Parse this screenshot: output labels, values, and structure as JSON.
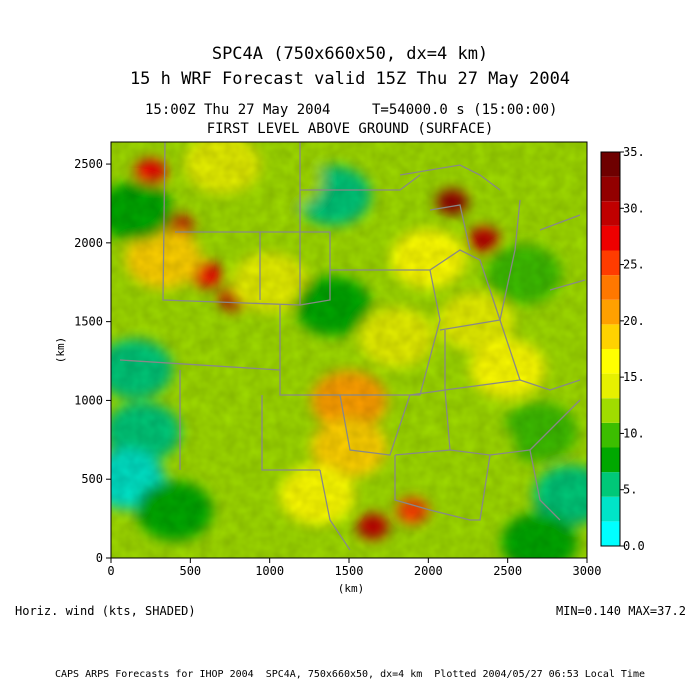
{
  "header": {
    "title_line1": "SPC4A (750x660x50, dx=4 km)",
    "title_line2": "15 h WRF Forecast valid 15Z Thu 27 May 2004",
    "time_left": "15:00Z Thu 27 May 2004",
    "time_right": "T=54000.0 s (15:00:00)",
    "level": "FIRST LEVEL ABOVE GROUND (SURFACE)"
  },
  "chart_data": {
    "type": "heatmap",
    "variable": "Horiz. wind (kts, SHADED)",
    "xlabel": "(km)",
    "ylabel": "(km)",
    "xlim": [
      0,
      3000
    ],
    "ylim": [
      0,
      2640
    ],
    "x_ticks": [
      "0",
      "500",
      "1000",
      "1500",
      "2000",
      "2500",
      "3000"
    ],
    "y_ticks": [
      "0",
      "500",
      "1000",
      "1500",
      "2000",
      "2500"
    ],
    "min_label": "MIN=0.140",
    "max_label": "MAX=37.2",
    "colorbar": {
      "range": [
        0,
        35
      ],
      "labels": [
        "35.",
        "30.",
        "25.",
        "20.",
        "15.",
        "10.",
        "5.",
        "0.0"
      ],
      "colors": [
        "#00ffff",
        "#00e4c8",
        "#00c878",
        "#00a800",
        "#3cbe00",
        "#a0dc00",
        "#e6f000",
        "#ffff00",
        "#ffd200",
        "#ffa000",
        "#ff7800",
        "#ff3c00",
        "#ee0000",
        "#c00000",
        "#920000",
        "#6e0000"
      ]
    },
    "regions": [
      {
        "x": 250,
        "y": 2450,
        "value": 27
      },
      {
        "x": 420,
        "y": 2100,
        "value": 30
      },
      {
        "x": 600,
        "y": 1800,
        "value": 28
      },
      {
        "x": 780,
        "y": 1650,
        "value": 29
      },
      {
        "x": 330,
        "y": 1900,
        "value": 18
      },
      {
        "x": 150,
        "y": 2200,
        "value": 8
      },
      {
        "x": 150,
        "y": 1200,
        "value": 6
      },
      {
        "x": 200,
        "y": 800,
        "value": 5
      },
      {
        "x": 100,
        "y": 500,
        "value": 4
      },
      {
        "x": 400,
        "y": 300,
        "value": 7
      },
      {
        "x": 900,
        "y": 1100,
        "value": 12
      },
      {
        "x": 1000,
        "y": 1750,
        "value": 14
      },
      {
        "x": 1400,
        "y": 2300,
        "value": 6
      },
      {
        "x": 1400,
        "y": 1600,
        "value": 8
      },
      {
        "x": 1500,
        "y": 1000,
        "value": 20
      },
      {
        "x": 1500,
        "y": 700,
        "value": 19
      },
      {
        "x": 1300,
        "y": 400,
        "value": 17
      },
      {
        "x": 1650,
        "y": 200,
        "value": 30
      },
      {
        "x": 1900,
        "y": 300,
        "value": 26
      },
      {
        "x": 2150,
        "y": 2260,
        "value": 32
      },
      {
        "x": 2350,
        "y": 2020,
        "value": 30
      },
      {
        "x": 2000,
        "y": 1900,
        "value": 17
      },
      {
        "x": 2300,
        "y": 1500,
        "value": 14
      },
      {
        "x": 2600,
        "y": 1800,
        "value": 9
      },
      {
        "x": 2800,
        "y": 2400,
        "value": 12
      },
      {
        "x": 2500,
        "y": 1200,
        "value": 17
      },
      {
        "x": 2700,
        "y": 800,
        "value": 10
      },
      {
        "x": 2300,
        "y": 700,
        "value": 12
      },
      {
        "x": 2000,
        "y": 900,
        "value": 11
      },
      {
        "x": 2900,
        "y": 400,
        "value": 6
      },
      {
        "x": 1800,
        "y": 1400,
        "value": 15
      },
      {
        "x": 1100,
        "y": 2400,
        "value": 11
      },
      {
        "x": 700,
        "y": 2500,
        "value": 14
      },
      {
        "x": 2700,
        "y": 100,
        "value": 7
      }
    ]
  },
  "footer": {
    "credit": "CAPS ARPS Forecasts for IHOP 2004  SPC4A, 750x660x50, dx=4 km  Plotted 2004/05/27 06:53 Local Time"
  }
}
